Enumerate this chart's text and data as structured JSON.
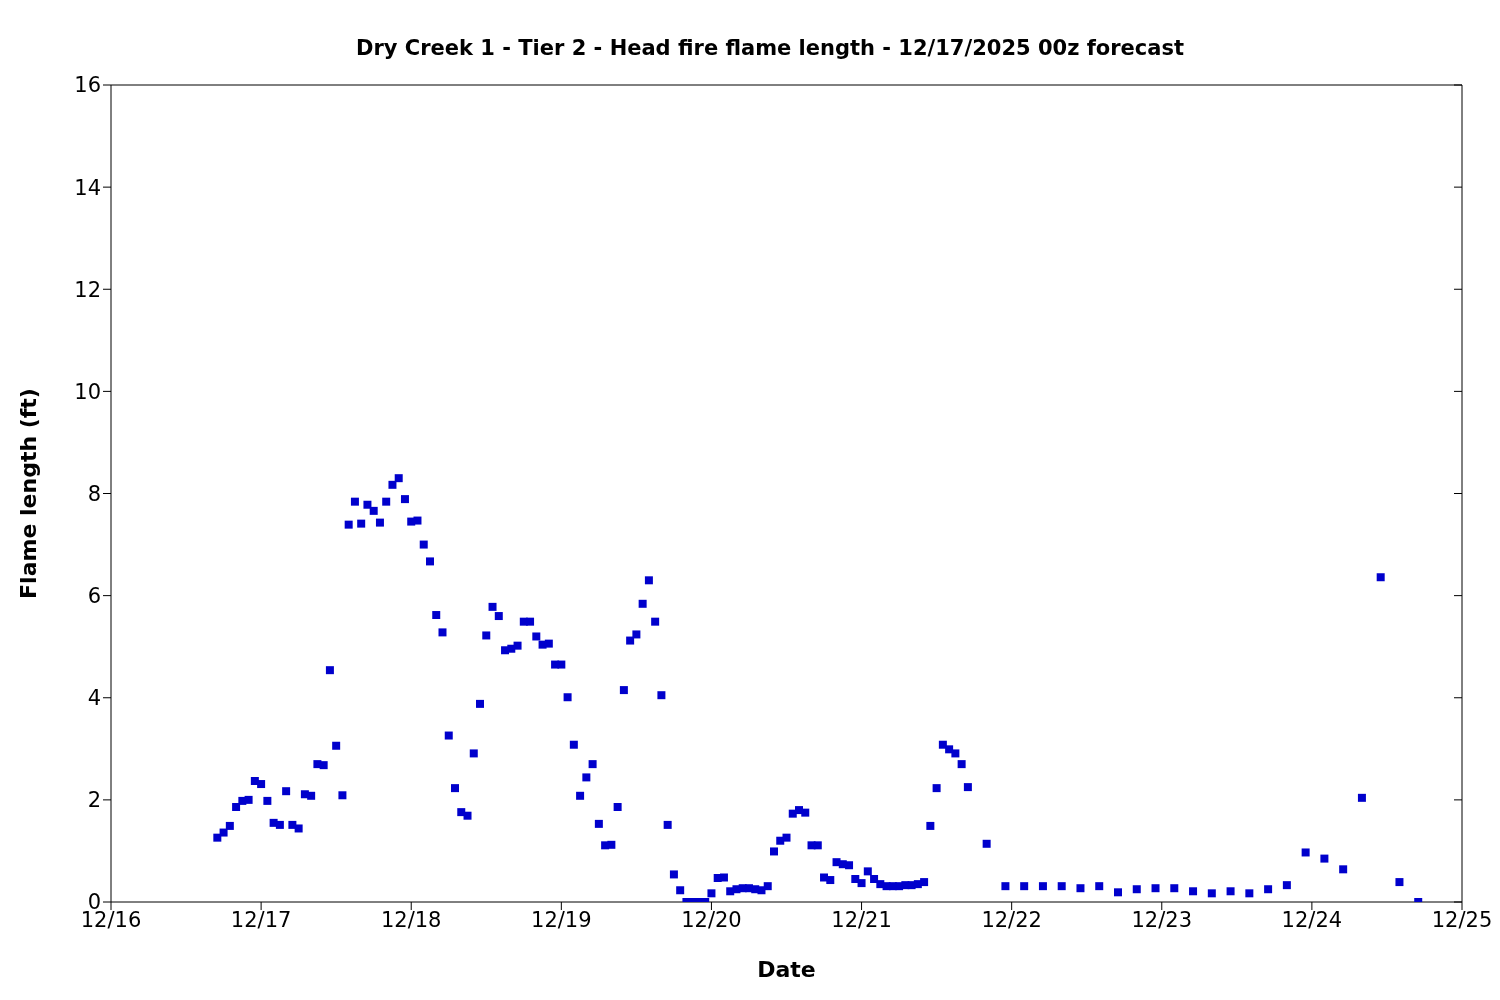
{
  "chart_data": {
    "type": "scatter",
    "title": "Dry Creek 1 - Tier 2 - Head fire flame length - 12/17/2025 00z forecast",
    "xlabel": "Date",
    "ylabel": "Flame length (ft)",
    "x": [
      "--12-16T17:00",
      "--12-16T18:00",
      "--12-16T19:00",
      "--12-16T20:00",
      "--12-16T21:00",
      "--12-16T22:00",
      "--12-16T23:00",
      "--12-17T00:00",
      "--12-17T01:00",
      "--12-17T02:00",
      "--12-17T03:00",
      "--12-17T04:00",
      "--12-17T05:00",
      "--12-17T06:00",
      "--12-17T07:00",
      "--12-17T08:00",
      "--12-17T09:00",
      "--12-17T10:00",
      "--12-17T11:00",
      "--12-17T12:00",
      "--12-17T13:00",
      "--12-17T14:00",
      "--12-17T15:00",
      "--12-17T16:00",
      "--12-17T17:00",
      "--12-17T18:00",
      "--12-17T19:00",
      "--12-17T20:00",
      "--12-17T21:00",
      "--12-17T22:00",
      "--12-17T23:00",
      "--12-18T00:00",
      "--12-18T01:00",
      "--12-18T02:00",
      "--12-18T03:00",
      "--12-18T04:00",
      "--12-18T05:00",
      "--12-18T06:00",
      "--12-18T07:00",
      "--12-18T08:00",
      "--12-18T09:00",
      "--12-18T10:00",
      "--12-18T11:00",
      "--12-18T12:00",
      "--12-18T13:00",
      "--12-18T14:00",
      "--12-18T15:00",
      "--12-18T16:00",
      "--12-18T17:00",
      "--12-18T18:00",
      "--12-18T19:00",
      "--12-18T20:00",
      "--12-18T21:00",
      "--12-18T22:00",
      "--12-18T23:00",
      "--12-19T00:00",
      "--12-19T01:00",
      "--12-19T02:00",
      "--12-19T03:00",
      "--12-19T04:00",
      "--12-19T05:00",
      "--12-19T06:00",
      "--12-19T07:00",
      "--12-19T08:00",
      "--12-19T09:00",
      "--12-19T10:00",
      "--12-19T11:00",
      "--12-19T12:00",
      "--12-19T13:00",
      "--12-19T14:00",
      "--12-19T15:00",
      "--12-19T16:00",
      "--12-19T17:00",
      "--12-19T18:00",
      "--12-19T19:00",
      "--12-19T20:00",
      "--12-19T21:00",
      "--12-19T22:00",
      "--12-19T23:00",
      "--12-20T00:00",
      "--12-20T01:00",
      "--12-20T02:00",
      "--12-20T03:00",
      "--12-20T04:00",
      "--12-20T05:00",
      "--12-20T06:00",
      "--12-20T07:00",
      "--12-20T08:00",
      "--12-20T09:00",
      "--12-20T10:00",
      "--12-20T11:00",
      "--12-20T12:00",
      "--12-20T13:00",
      "--12-20T14:00",
      "--12-20T15:00",
      "--12-20T16:00",
      "--12-20T17:00",
      "--12-20T18:00",
      "--12-20T19:00",
      "--12-20T20:00",
      "--12-20T21:00",
      "--12-20T22:00",
      "--12-20T23:00",
      "--12-21T00:00",
      "--12-21T01:00",
      "--12-21T02:00",
      "--12-21T03:00",
      "--12-21T04:00",
      "--12-21T05:00",
      "--12-21T06:00",
      "--12-21T07:00",
      "--12-21T08:00",
      "--12-21T09:00",
      "--12-21T10:00",
      "--12-21T11:00",
      "--12-21T12:00",
      "--12-21T13:00",
      "--12-21T14:00",
      "--12-21T15:00",
      "--12-21T16:00",
      "--12-21T17:00",
      "--12-21T20:00",
      "--12-21T23:00",
      "--12-22T02:00",
      "--12-22T05:00",
      "--12-22T08:00",
      "--12-22T11:00",
      "--12-22T14:00",
      "--12-22T17:00",
      "--12-22T20:00",
      "--12-22T23:00",
      "--12-23T02:00",
      "--12-23T05:00",
      "--12-23T08:00",
      "--12-23T11:00",
      "--12-23T14:00",
      "--12-23T17:00",
      "--12-23T20:00",
      "--12-23T23:00",
      "--12-24T02:00",
      "--12-24T05:00",
      "--12-24T08:00",
      "--12-24T11:00",
      "--12-24T14:00",
      "--12-24T17:00"
    ],
    "values": [
      1.26,
      1.36,
      1.49,
      1.86,
      1.98,
      2.0,
      2.37,
      2.31,
      1.98,
      1.55,
      1.51,
      2.17,
      1.51,
      1.44,
      2.11,
      2.08,
      2.7,
      2.68,
      4.54,
      3.06,
      2.09,
      7.39,
      7.84,
      7.41,
      7.78,
      7.66,
      7.43,
      7.84,
      8.17,
      8.3,
      7.89,
      7.45,
      7.47,
      7.0,
      6.67,
      5.62,
      5.28,
      3.26,
      2.23,
      1.76,
      1.69,
      2.91,
      3.88,
      5.22,
      5.78,
      5.6,
      4.93,
      4.96,
      5.02,
      5.49,
      5.49,
      5.2,
      5.04,
      5.06,
      4.65,
      4.65,
      4.01,
      3.08,
      2.08,
      2.44,
      2.7,
      1.53,
      1.11,
      1.12,
      1.86,
      4.15,
      5.12,
      5.24,
      5.84,
      6.3,
      5.49,
      4.05,
      1.51,
      0.54,
      0.23,
      0,
      0,
      0,
      0,
      0.17,
      0.47,
      0.48,
      0.21,
      0.25,
      0.27,
      0.27,
      0.25,
      0.23,
      0.31,
      0.99,
      1.2,
      1.26,
      1.73,
      1.8,
      1.75,
      1.11,
      1.11,
      0.48,
      0.43,
      0.78,
      0.74,
      0.72,
      0.45,
      0.37,
      0.6,
      0.45,
      0.35,
      0.31,
      0.31,
      0.31,
      0.33,
      0.33,
      0.35,
      0.39,
      1.49,
      2.23,
      3.08,
      2.99,
      2.91,
      2.7,
      2.25,
      1.14,
      0.31,
      0.31,
      0.31,
      0.31,
      0.27,
      0.31,
      0.19,
      0.25,
      0.27,
      0.27,
      0.21,
      0.17,
      0.21,
      0.17,
      0.25,
      0.33,
      0.97,
      0.85,
      0.64,
      2.04,
      6.36,
      0.39,
      0
    ],
    "color": "#0000cc",
    "marker": "square",
    "xlim": [
      "--12-16",
      "--12-25"
    ],
    "xticks": [
      {
        "value": "--12-16",
        "label": "12/16"
      },
      {
        "value": "--12-17",
        "label": "12/17"
      },
      {
        "value": "--12-18",
        "label": "12/18"
      },
      {
        "value": "--12-19",
        "label": "12/19"
      },
      {
        "value": "--12-20",
        "label": "12/20"
      },
      {
        "value": "--12-21",
        "label": "12/21"
      },
      {
        "value": "--12-22",
        "label": "12/22"
      },
      {
        "value": "--12-23",
        "label": "12/23"
      },
      {
        "value": "--12-24",
        "label": "12/24"
      },
      {
        "value": "--12-25",
        "label": "12/25"
      }
    ],
    "ylim": [
      0,
      16
    ],
    "yticks": [
      0,
      2,
      4,
      6,
      8,
      10,
      12,
      14,
      16
    ],
    "grid": false,
    "legend": false
  }
}
